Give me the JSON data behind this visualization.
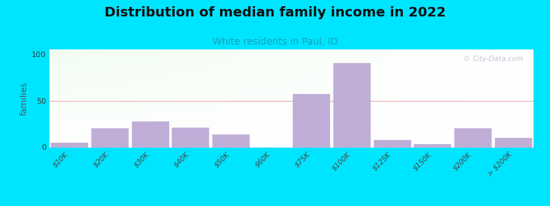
{
  "title": "Distribution of median family income in 2022",
  "subtitle": "White residents in Paul, ID",
  "ylabel": "families",
  "categories": [
    "$10K",
    "$20K",
    "$30K",
    "$40K",
    "$50K",
    "$60K",
    "$75K",
    "$100K",
    "$125K",
    "$150K",
    "$200K",
    "> $200K"
  ],
  "values": [
    5,
    20,
    28,
    21,
    14,
    0,
    57,
    90,
    8,
    3,
    20,
    10
  ],
  "bar_color": "#c0aed8",
  "bar_edge_color": "#c0aed8",
  "title_color": "#111111",
  "subtitle_color": "#1a9fbb",
  "ylabel_color": "#555555",
  "background_outer": "#00e5ff",
  "grid_color": "#e8b0b0",
  "yticks": [
    0,
    50,
    100
  ],
  "ylim": [
    0,
    105
  ],
  "watermark": "City-Data.com",
  "title_fontsize": 14,
  "subtitle_fontsize": 10,
  "ylabel_fontsize": 9,
  "tick_fontsize": 7.5
}
